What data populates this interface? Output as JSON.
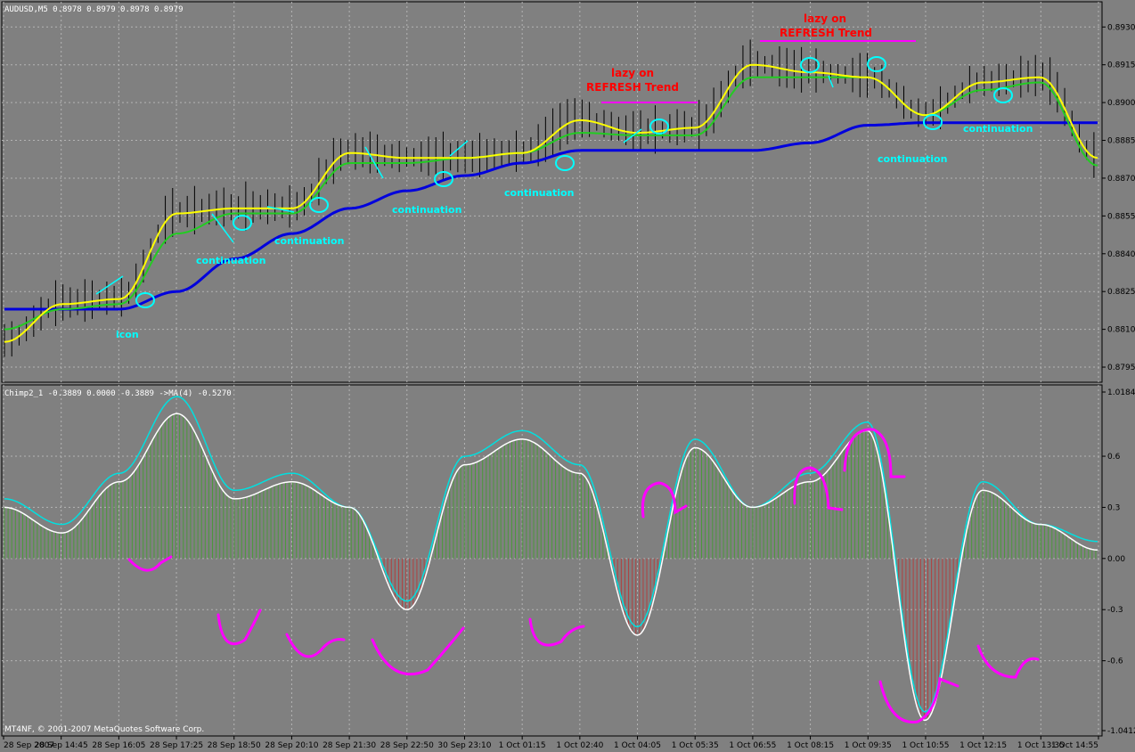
{
  "main_chart": {
    "title": "AUDUSD,M5  0.8978 0.8979 0.8978 0.8979",
    "y_ticks": [
      "0.8930",
      "0.8915",
      "0.8900",
      "0.8885",
      "0.8870",
      "0.8855",
      "0.8840",
      "0.8825",
      "0.8810",
      "0.8795"
    ]
  },
  "indicator_chart": {
    "title": "Chimp2_1 -0.3889 0.0000 -0.3889  ->MA(4) -0.5270",
    "y_ticks": [
      "1.0184",
      "0.6",
      "0.3",
      "0.00",
      "-0.3",
      "-0.6",
      "-1.0412"
    ]
  },
  "copyright": "MT4NF, © 2001-2007 MetaQuotes Software Corp.",
  "x_ticks": [
    "28 Sep 2007",
    "28 Sep 14:45",
    "28 Sep 16:05",
    "28 Sep 17:25",
    "28 Sep 18:50",
    "28 Sep 20:10",
    "28 Sep 21:30",
    "28 Sep 22:50",
    "30 Sep 23:10",
    "1 Oct 01:15",
    "1 Oct 02:40",
    "1 Oct 04:05",
    "1 Oct 05:35",
    "1 Oct 06:55",
    "1 Oct 08:15",
    "1 Oct 09:35",
    "1 Oct 10:55",
    "1 Oct 12:15",
    "1 Oct 13:35",
    "1 Oct 14:55"
  ],
  "annotations": {
    "icon": "icon",
    "continuation": "continuation",
    "lazy_on_1": "lazy on",
    "refresh_1": "REFRESH Trend",
    "lazy_on_2": "lazy on",
    "refresh_2": "REFRESH Trend"
  },
  "colors": {
    "background": "#808080",
    "grid": "#b4b4b4",
    "candles": "#000000",
    "fast_ma": "#ffff00",
    "slow_ma": "#22cc22",
    "long_ma": "#0000dd",
    "hist_pos": "#4a9a3a",
    "hist_neg": "#b04040",
    "osc_line": "#00e0e0",
    "signal_line": "#ffffff",
    "marks": "#00ffff",
    "handwriting": "#ff00ff",
    "red_text": "#ff0000"
  },
  "chart_data": [
    {
      "type": "line",
      "title": "AUDUSD,M5  0.8978 0.8979 0.8978 0.8979",
      "x": [
        "28 Sep 2007",
        "28 Sep 14:45",
        "28 Sep 16:05",
        "28 Sep 17:25",
        "28 Sep 18:50",
        "28 Sep 20:10",
        "28 Sep 21:30",
        "28 Sep 22:50",
        "30 Sep 23:10",
        "1 Oct 01:15",
        "1 Oct 02:40",
        "1 Oct 04:05",
        "1 Oct 05:35",
        "1 Oct 06:55",
        "1 Oct 08:15",
        "1 Oct 09:35",
        "1 Oct 10:55",
        "1 Oct 12:15",
        "1 Oct 13:35",
        "1 Oct 14:55"
      ],
      "ylim": [
        0.8789,
        0.894
      ],
      "grid": true,
      "series": [
        {
          "values": [
            0.8805,
            0.882,
            0.8822,
            0.8856,
            0.8858,
            0.8858,
            0.888,
            0.8878,
            0.8878,
            0.888,
            0.8893,
            0.8888,
            0.889,
            0.8915,
            0.8912,
            0.891,
            0.8895,
            0.8908,
            0.891,
            0.8878
          ]
        },
        {
          "values": [
            0.881,
            0.8818,
            0.882,
            0.8848,
            0.8856,
            0.8856,
            0.8876,
            0.8876,
            0.8878,
            0.888,
            0.8888,
            0.8887,
            0.8887,
            0.891,
            0.891,
            0.891,
            0.8895,
            0.8905,
            0.8908,
            0.8875
          ]
        },
        {
          "values": [
            0.8818,
            0.8818,
            0.8818,
            0.8825,
            0.8838,
            0.8848,
            0.8858,
            0.8865,
            0.8871,
            0.8876,
            0.8881,
            0.8881,
            0.8881,
            0.8881,
            0.8884,
            0.8891,
            0.8892,
            0.8892,
            0.8892,
            0.8892
          ]
        }
      ]
    },
    {
      "type": "bar",
      "title": "Chimp2_1 -0.3889 0.0000 -0.3889  ->MA(4) -0.5270",
      "x": [
        "28 Sep 2007",
        "28 Sep 14:45",
        "28 Sep 16:05",
        "28 Sep 17:25",
        "28 Sep 18:50",
        "28 Sep 20:10",
        "28 Sep 21:30",
        "28 Sep 22:50",
        "30 Sep 23:10",
        "1 Oct 01:15",
        "1 Oct 02:40",
        "1 Oct 04:05",
        "1 Oct 05:35",
        "1 Oct 06:55",
        "1 Oct 08:15",
        "1 Oct 09:35",
        "1 Oct 10:55",
        "1 Oct 12:15",
        "1 Oct 13:35",
        "1 Oct 14:55"
      ],
      "ylim": [
        -1.0412,
        1.0184
      ],
      "grid": true,
      "series": [
        {
          "values": [
            0.35,
            0.2,
            0.5,
            0.95,
            0.4,
            0.5,
            0.3,
            -0.25,
            0.6,
            0.75,
            0.55,
            -0.4,
            0.7,
            0.3,
            0.5,
            0.8,
            -0.9,
            0.45,
            0.2,
            0.1
          ]
        },
        {
          "values": [
            0.3,
            0.15,
            0.45,
            0.85,
            0.35,
            0.45,
            0.3,
            -0.3,
            0.55,
            0.7,
            0.5,
            -0.45,
            0.65,
            0.3,
            0.45,
            0.75,
            -0.95,
            0.4,
            0.2,
            0.05
          ]
        }
      ]
    }
  ]
}
